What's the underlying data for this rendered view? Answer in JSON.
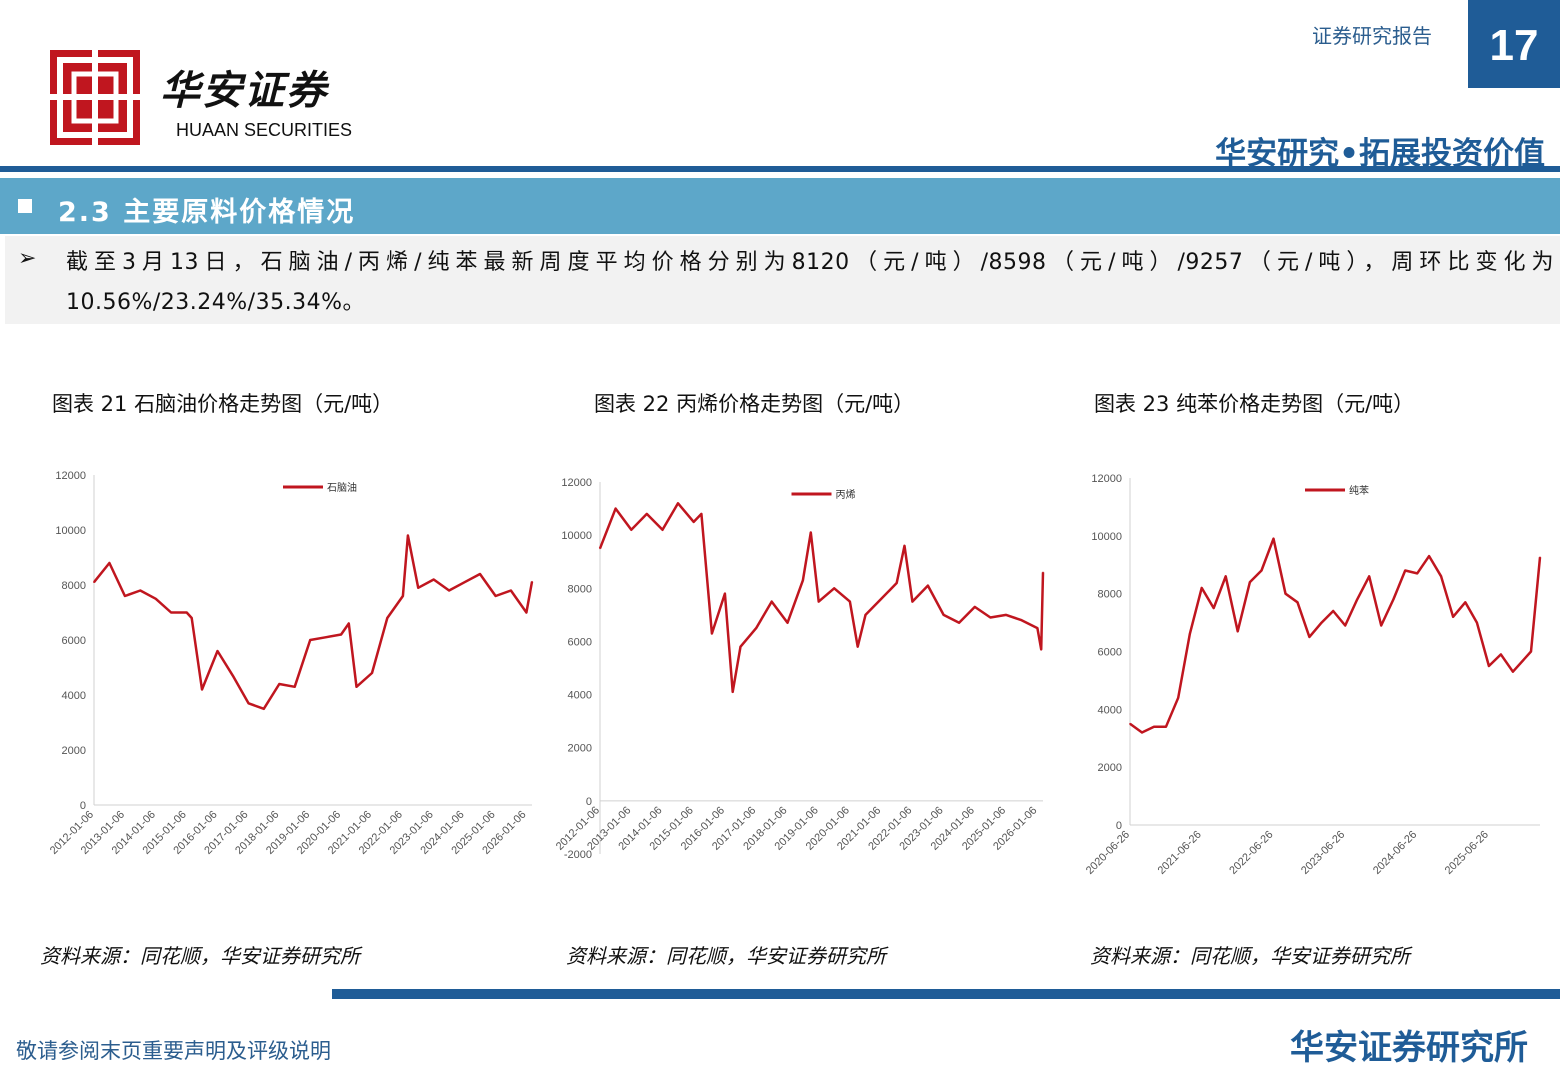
{
  "header": {
    "logo_cn": "华安证券",
    "logo_en": "HUAAN SECURITIES",
    "report_type": "证券研究报告",
    "page_number": "17",
    "slogan": "华安研究•拓展投资价值"
  },
  "section": {
    "title": "2.3 主要原料价格情况",
    "summary": "截至3月13日，石脑油/丙烯/纯苯最新周度平均价格分别为8120（元/吨）/8598（元/吨）/9257（元/吨），周环比变化为10.56%/23.24%/35.34%。"
  },
  "figures": [
    {
      "title": "图表 21 石脑油价格走势图（元/吨）",
      "source": "资料来源：同花顺，华安证券研究所"
    },
    {
      "title": "图表 22 丙烯价格走势图（元/吨）",
      "source": "资料来源：同花顺，华安证券研究所"
    },
    {
      "title": "图表 23 纯苯价格走势图（元/吨）",
      "source": "资料来源：同花顺，华安证券研究所"
    }
  ],
  "footer": {
    "disclaimer": "敬请参阅末页重要声明及评级说明",
    "institute": "华安证券研究所"
  },
  "colors": {
    "brand": "#1f5c97",
    "section": "#5da7c9",
    "series": "#c0161f",
    "logo": "#c0161f"
  },
  "chart_data": [
    {
      "type": "line",
      "series": [
        {
          "name": "石脑油",
          "x": [
            "2012-01-06",
            "2012-07-06",
            "2013-01-06",
            "2013-07-06",
            "2014-01-06",
            "2014-07-06",
            "2015-01-06",
            "2015-03-06",
            "2015-07-06",
            "2016-01-06",
            "2016-07-06",
            "2017-01-06",
            "2017-07-06",
            "2018-01-06",
            "2018-07-06",
            "2019-01-06",
            "2019-07-06",
            "2020-01-06",
            "2020-04-06",
            "2020-07-06",
            "2021-01-06",
            "2021-07-06",
            "2022-01-06",
            "2022-03-06",
            "2022-07-06",
            "2023-01-06",
            "2023-07-06",
            "2024-01-06",
            "2024-07-06",
            "2025-01-06",
            "2025-07-06",
            "2026-01-06",
            "2026-03-13"
          ],
          "values": [
            8100,
            8800,
            7600,
            7800,
            7500,
            7000,
            7000,
            6800,
            4200,
            5600,
            4700,
            3700,
            3500,
            4400,
            4300,
            6000,
            6100,
            6200,
            6600,
            4300,
            4800,
            6800,
            7600,
            9800,
            7900,
            8200,
            7800,
            8100,
            8400,
            7600,
            7800,
            7000,
            8120
          ]
        }
      ],
      "ylim": [
        0,
        12000
      ],
      "yticks": [
        "0",
        "2000",
        "4000",
        "6000",
        "8000",
        "10000",
        "12000"
      ],
      "xticks": [
        "2012-01-06",
        "2013-01-06",
        "2014-01-06",
        "2015-01-06",
        "2016-01-06",
        "2017-01-06",
        "2018-01-06",
        "2019-01-06",
        "2020-01-06",
        "2021-01-06",
        "2022-01-06",
        "2023-01-06",
        "2024-01-06",
        "2025-01-06",
        "2026-01-06"
      ],
      "legend": "top-center"
    },
    {
      "type": "line",
      "series": [
        {
          "name": "丙烯",
          "x": [
            "2012-01-06",
            "2012-07-06",
            "2013-01-06",
            "2013-07-06",
            "2014-01-06",
            "2014-07-06",
            "2015-01-06",
            "2015-04-06",
            "2015-08-06",
            "2016-01-06",
            "2016-04-06",
            "2016-07-06",
            "2017-01-06",
            "2017-07-06",
            "2018-01-06",
            "2018-07-06",
            "2018-10-06",
            "2019-01-06",
            "2019-07-06",
            "2020-01-06",
            "2020-04-06",
            "2020-07-06",
            "2021-01-06",
            "2021-07-06",
            "2021-10-06",
            "2022-01-06",
            "2022-07-06",
            "2023-01-06",
            "2023-07-06",
            "2024-01-06",
            "2024-07-06",
            "2025-01-06",
            "2025-07-06",
            "2026-01-06",
            "2026-02-20",
            "2026-03-13"
          ],
          "values": [
            9500,
            11000,
            10200,
            10800,
            10200,
            11200,
            10500,
            10800,
            6300,
            7800,
            4100,
            5800,
            6500,
            7500,
            6700,
            8300,
            10100,
            7500,
            8000,
            7500,
            5800,
            7000,
            7600,
            8200,
            9600,
            7500,
            8100,
            7000,
            6700,
            7300,
            6900,
            7000,
            6800,
            6500,
            5700,
            8598
          ]
        }
      ],
      "ylim": [
        -2000,
        12000
      ],
      "yticks": [
        "-2000",
        "0",
        "2000",
        "4000",
        "6000",
        "8000",
        "10000",
        "12000"
      ],
      "xticks": [
        "2012-01-06",
        "2013-01-06",
        "2014-01-06",
        "2015-01-06",
        "2016-01-06",
        "2017-01-06",
        "2018-01-06",
        "2019-01-06",
        "2020-01-06",
        "2021-01-06",
        "2022-01-06",
        "2023-01-06",
        "2024-01-06",
        "2025-01-06",
        "2026-01-06"
      ],
      "legend": "top-center"
    },
    {
      "type": "line",
      "series": [
        {
          "name": "纯苯",
          "x": [
            "2020-06-26",
            "2020-08-26",
            "2020-10-26",
            "2020-12-26",
            "2021-02-26",
            "2021-04-26",
            "2021-06-26",
            "2021-08-26",
            "2021-10-26",
            "2021-12-26",
            "2022-02-26",
            "2022-04-26",
            "2022-06-26",
            "2022-08-26",
            "2022-10-26",
            "2022-12-26",
            "2023-02-26",
            "2023-04-26",
            "2023-06-26",
            "2023-08-26",
            "2023-10-26",
            "2023-12-26",
            "2024-02-26",
            "2024-04-26",
            "2024-06-26",
            "2024-08-26",
            "2024-10-26",
            "2024-12-26",
            "2025-02-26",
            "2025-04-26",
            "2025-06-26",
            "2025-08-26",
            "2025-10-26",
            "2026-01-26",
            "2026-03-13"
          ],
          "values": [
            3500,
            3200,
            3400,
            3400,
            4400,
            6600,
            8200,
            7500,
            8600,
            6700,
            8400,
            8800,
            9900,
            8000,
            7700,
            6500,
            7000,
            7400,
            6900,
            7800,
            8600,
            6900,
            7800,
            8800,
            8700,
            9300,
            8600,
            7200,
            7700,
            7000,
            5500,
            5900,
            5300,
            6000,
            9257
          ]
        }
      ],
      "ylim": [
        0,
        12000
      ],
      "yticks": [
        "0",
        "2000",
        "4000",
        "6000",
        "8000",
        "10000",
        "12000"
      ],
      "xticks": [
        "2020-06-26",
        "2021-06-26",
        "2022-06-26",
        "2023-06-26",
        "2024-06-26",
        "2025-06-26"
      ],
      "legend": "top-center"
    }
  ]
}
